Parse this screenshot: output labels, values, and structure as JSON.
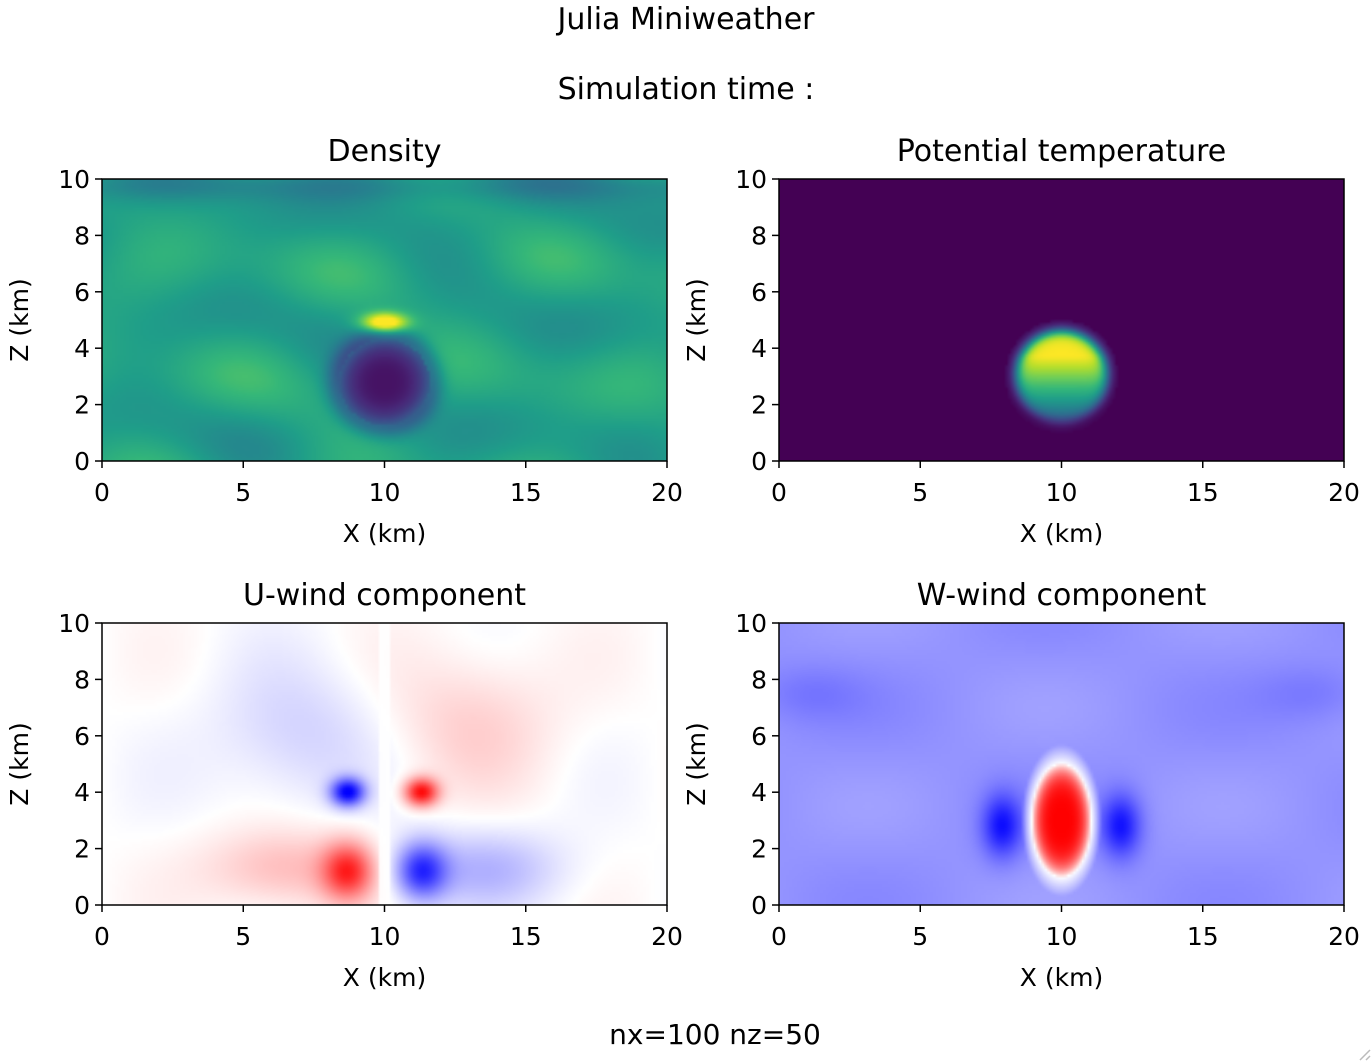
{
  "figure": {
    "title": "Julia Miniweather",
    "subtitle": "Simulation time :",
    "footer": "nx=100 nz=50"
  },
  "chart_data": [
    {
      "type": "heatmap",
      "title": "Density",
      "xlabel": "X (km)",
      "ylabel": "Z (km)",
      "xlim": [
        0,
        20
      ],
      "ylim": [
        0,
        10
      ],
      "xticks": [
        "0",
        "5",
        "10",
        "15",
        "20"
      ],
      "yticks": [
        "0",
        "2",
        "4",
        "6",
        "8",
        "10"
      ],
      "colormap": "viridis",
      "field": "density"
    },
    {
      "type": "heatmap",
      "title": "Potential temperature",
      "xlabel": "X (km)",
      "ylabel": "Z (km)",
      "xlim": [
        0,
        20
      ],
      "ylim": [
        0,
        10
      ],
      "xticks": [
        "0",
        "5",
        "10",
        "15",
        "20"
      ],
      "yticks": [
        "0",
        "2",
        "4",
        "6",
        "8",
        "10"
      ],
      "colormap": "viridis",
      "field": "theta"
    },
    {
      "type": "heatmap",
      "title": "U-wind component",
      "xlabel": "X (km)",
      "ylabel": "Z (km)",
      "xlim": [
        0,
        20
      ],
      "ylim": [
        0,
        10
      ],
      "xticks": [
        "0",
        "5",
        "10",
        "15",
        "20"
      ],
      "yticks": [
        "0",
        "2",
        "4",
        "6",
        "8",
        "10"
      ],
      "colormap": "bwr",
      "field": "uwind"
    },
    {
      "type": "heatmap",
      "title": "W-wind component",
      "xlabel": "X (km)",
      "ylabel": "Z (km)",
      "xlim": [
        0,
        20
      ],
      "ylim": [
        0,
        10
      ],
      "xticks": [
        "0",
        "5",
        "10",
        "15",
        "20"
      ],
      "yticks": [
        "0",
        "2",
        "4",
        "6",
        "8",
        "10"
      ],
      "colormap": "bwr",
      "field": "wwind"
    }
  ]
}
